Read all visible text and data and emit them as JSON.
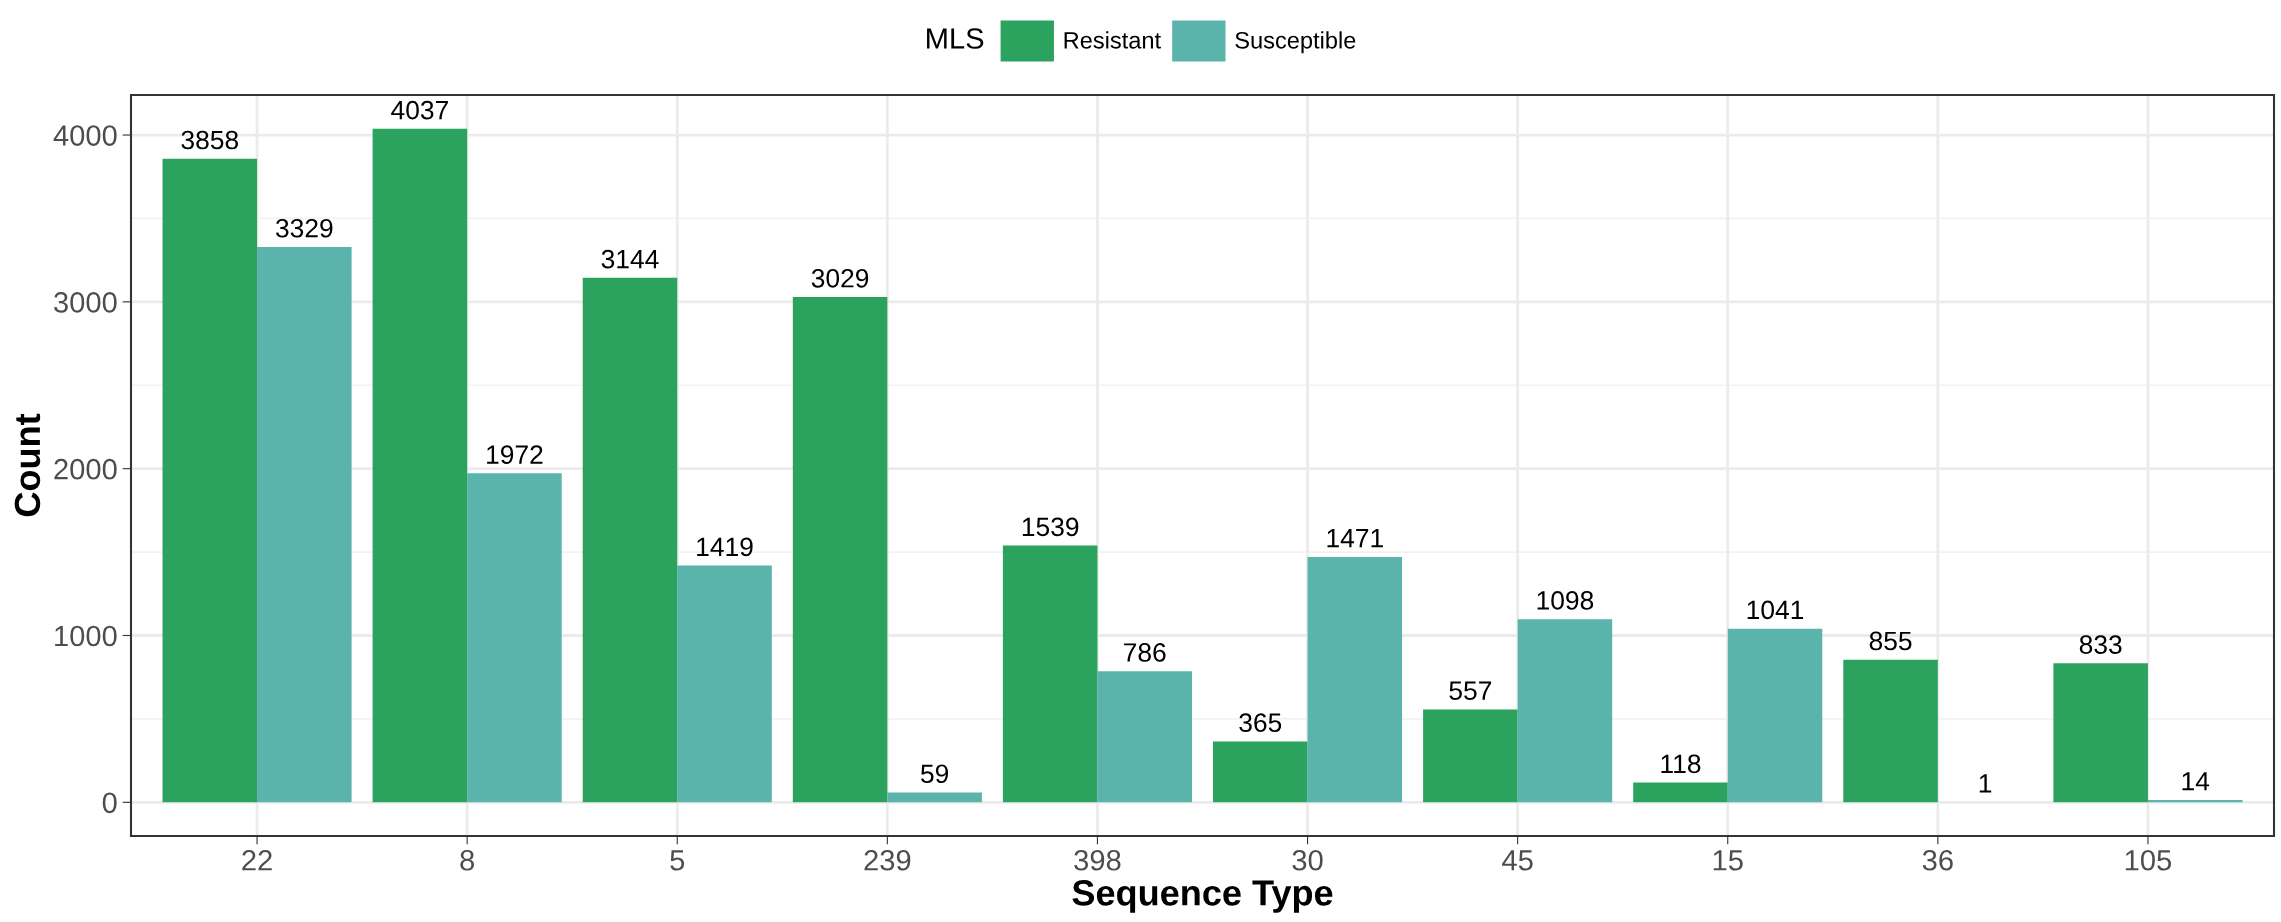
{
  "chart_data": {
    "type": "bar",
    "xlabel": "Sequence Type",
    "ylabel": "Count",
    "legend_title": "MLS",
    "categories": [
      "22",
      "8",
      "5",
      "239",
      "398",
      "30",
      "45",
      "15",
      "36",
      "105"
    ],
    "series": [
      {
        "name": "Resistant",
        "color": "#2ca25f",
        "values": [
          3858,
          4037,
          3144,
          3029,
          1539,
          365,
          557,
          118,
          855,
          833
        ]
      },
      {
        "name": "Susceptible",
        "color": "#5ab4ac",
        "values": [
          3329,
          1972,
          1419,
          59,
          786,
          1471,
          1098,
          1041,
          1,
          14
        ]
      }
    ],
    "ylim": [
      -202,
      4240
    ],
    "yticks": [
      0,
      1000,
      2000,
      3000,
      4000
    ],
    "grid": true,
    "legend": "top",
    "data_labels": true
  }
}
